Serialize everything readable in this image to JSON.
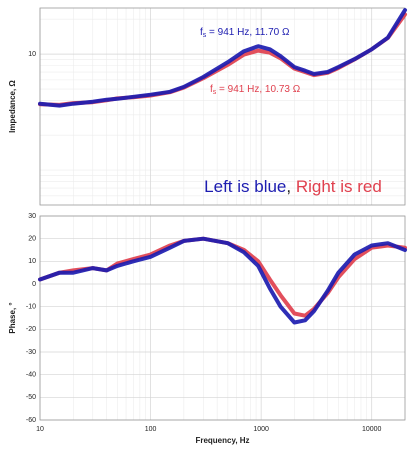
{
  "chart_data": [
    {
      "type": "line",
      "ylabel": "Impedance, Ω",
      "xlog": true,
      "ylog": true,
      "xlim": [
        10,
        20000
      ],
      "xticks": [
        10,
        100,
        1000,
        10000
      ],
      "xtick_labels": false,
      "ylim": [
        0.5,
        25
      ],
      "yticks": [
        10
      ],
      "grid": true,
      "x": [
        10,
        15,
        20,
        30,
        40,
        50,
        70,
        100,
        150,
        200,
        300,
        500,
        700,
        941,
        1200,
        1500,
        2000,
        2500,
        3000,
        4000,
        5000,
        7000,
        10000,
        14000,
        20000
      ],
      "series": [
        {
          "color": "#e0404e",
          "values": [
            3.7,
            3.65,
            3.78,
            3.85,
            4.0,
            4.15,
            4.25,
            4.4,
            4.7,
            5.15,
            6.2,
            8.1,
            9.9,
            10.73,
            10.3,
            9.2,
            7.5,
            7.0,
            6.6,
            6.9,
            7.6,
            9.0,
            11.0,
            13.8,
            22
          ]
        },
        {
          "color": "#1c1cb0",
          "values": [
            3.74,
            3.6,
            3.74,
            3.89,
            4.05,
            4.12,
            4.29,
            4.47,
            4.73,
            5.22,
            6.35,
            8.53,
            10.6,
            11.7,
            11.0,
            9.6,
            7.73,
            7.2,
            6.74,
            7.01,
            7.73,
            9.06,
            11.0,
            13.9,
            24
          ]
        }
      ],
      "annotations": [
        {
          "text": [
            "f",
            "s",
            " = 941 Hz, 11.70 Ω"
          ],
          "color": "#1c1cb0"
        },
        {
          "text": [
            "f",
            "s",
            " = 941 Hz, 10.73 Ω"
          ],
          "color": "#e0404e"
        }
      ],
      "caption": [
        {
          "text": "Left is blue",
          "color": "#1c1cb0"
        },
        {
          "text": ", ",
          "color": "#222222"
        },
        {
          "text": "Right is red",
          "color": "#e0404e"
        }
      ]
    },
    {
      "type": "line",
      "ylabel": "Phase, °",
      "xlabel": "Frequency, Hz",
      "xlog": true,
      "ylog": false,
      "xlim": [
        10,
        20000
      ],
      "xticks": [
        10,
        100,
        1000,
        10000
      ],
      "xtick_labels": true,
      "ylim": [
        -60,
        30
      ],
      "yticks": [
        30,
        20,
        10,
        0,
        -10,
        -20,
        -30,
        -40,
        -50,
        -60
      ],
      "grid": true,
      "x": [
        10,
        15,
        20,
        30,
        40,
        50,
        70,
        100,
        150,
        200,
        300,
        500,
        700,
        941,
        1200,
        1500,
        2000,
        2500,
        3000,
        4000,
        5000,
        7000,
        10000,
        14000,
        20000
      ],
      "series": [
        {
          "color": "#e0404e",
          "values": [
            2,
            5,
            6,
            7,
            6,
            9,
            11,
            13,
            17,
            19,
            20,
            18,
            15,
            10,
            2,
            -5,
            -13,
            -14,
            -11,
            -4,
            3,
            11,
            16,
            17,
            16
          ]
        },
        {
          "color": "#1c1cb0",
          "values": [
            2,
            5,
            5,
            7,
            6,
            8,
            10,
            12,
            16,
            19,
            20,
            18,
            14,
            8,
            -2,
            -10,
            -17,
            -16,
            -12,
            -3,
            5,
            13,
            17,
            18,
            15
          ]
        }
      ]
    }
  ]
}
